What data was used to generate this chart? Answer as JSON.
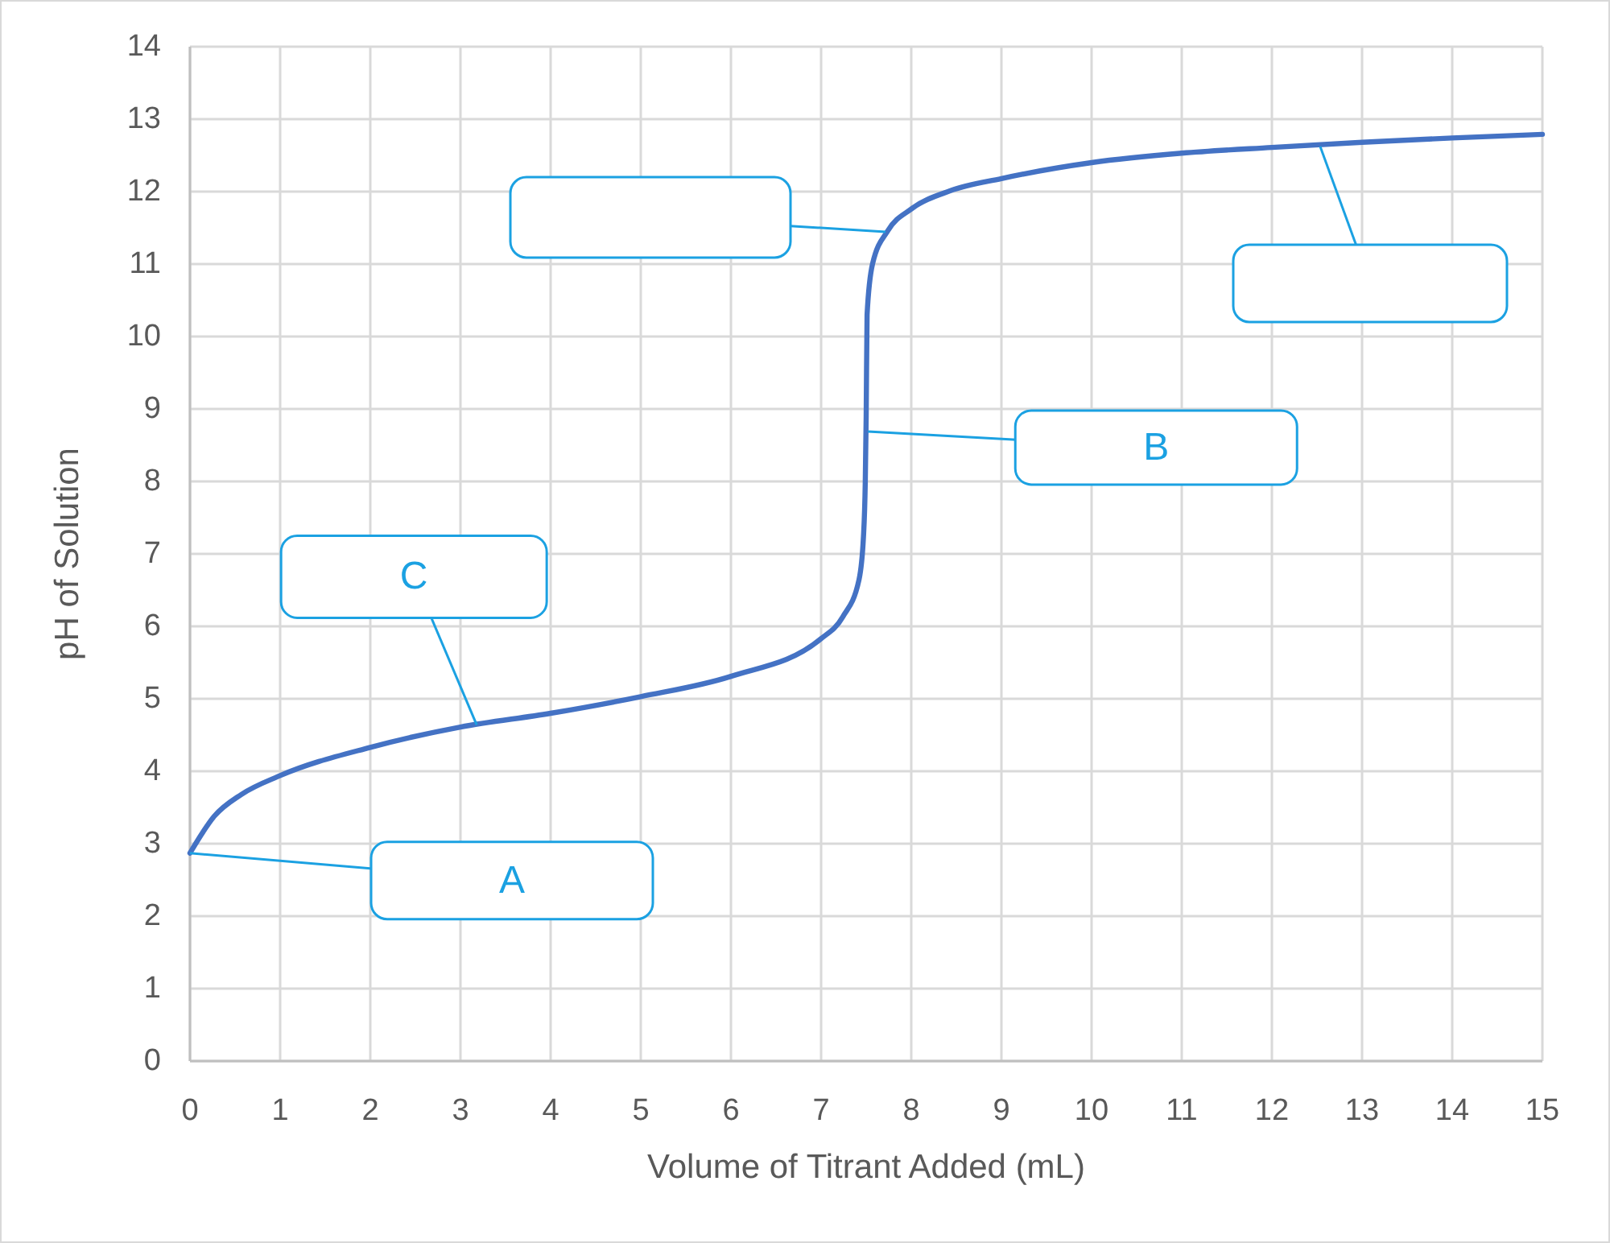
{
  "chart_data": {
    "type": "line",
    "xlabel": "Volume of Titrant Added (mL)",
    "ylabel": "pH of Solution",
    "series": [
      {
        "color": "#4472c4",
        "x": [
          0,
          0.27,
          0.57,
          1.0,
          2.0,
          3.0,
          4.0,
          5.0,
          6.0,
          7.0,
          7.24,
          7.42,
          7.47,
          7.49,
          7.5,
          7.51,
          7.57,
          7.74,
          8.0,
          8.43,
          9.0,
          10.0,
          11.0,
          12.0,
          13.0,
          14.0,
          15.0
        ],
        "values": [
          2.87,
          3.38,
          3.68,
          3.94,
          4.33,
          4.61,
          4.8,
          5.03,
          5.31,
          5.83,
          6.13,
          6.64,
          7.24,
          8.0,
          8.9,
          10.3,
          11.0,
          11.46,
          11.76,
          12.01,
          12.18,
          12.4,
          12.53,
          12.61,
          12.68,
          12.74,
          12.79
        ]
      }
    ],
    "xlim": [
      0,
      15
    ],
    "xticks": [
      0,
      1,
      2,
      3,
      4,
      5,
      6,
      7,
      8,
      9,
      10,
      11,
      12,
      13,
      14,
      15
    ],
    "ylim": [
      0,
      14
    ],
    "yticks": [
      0,
      1,
      2,
      3,
      4,
      5,
      6,
      7,
      8,
      9,
      10,
      11,
      12,
      13,
      14
    ],
    "grid": true,
    "marker": "none",
    "line_style": "solid",
    "annotations": [
      {
        "text": "A",
        "x": 0,
        "y": 2.87
      },
      {
        "text": "B",
        "x": 7.52,
        "y": 8.69
      },
      {
        "text": "C",
        "x": 3.18,
        "y": 4.64
      }
    ]
  }
}
